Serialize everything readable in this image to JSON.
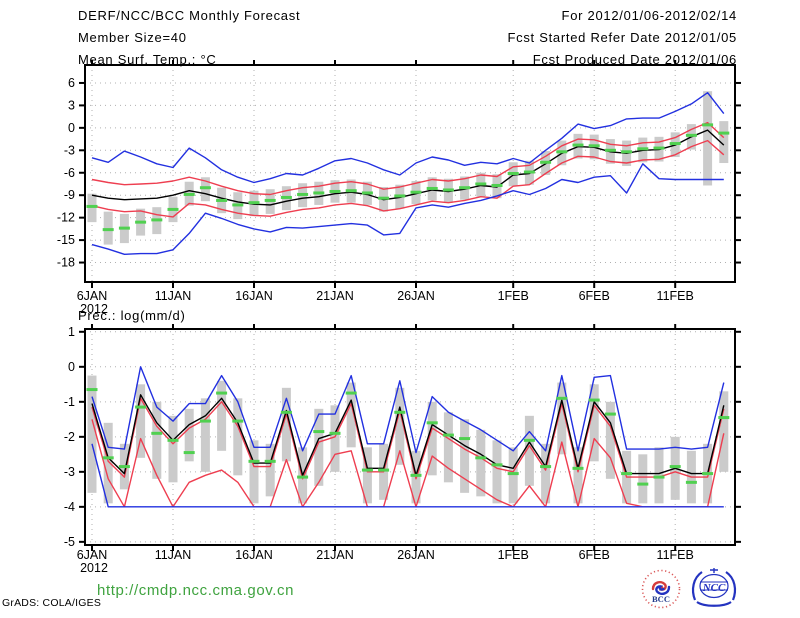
{
  "header": {
    "title": "DERF/NCC/BCC Monthly Forecast",
    "member_size": "Member Size=40",
    "temp_label": "Mean Surf. Temp.: °C",
    "for_range": "For 2012/01/06-2012/02/14",
    "fcst_started": "Fcst Started Refer Date 2012/01/05",
    "fcst_produced": "Fcst Produced Date 2012/01/06"
  },
  "prec_label": "Prec.: log(mm/d)",
  "footer": {
    "url": "http://cmdp.ncc.cma.gov.cn",
    "credit": "GrADS: COLA/IGES",
    "bcc_logo_text": "BCC",
    "ncc_logo_text": "NCC"
  },
  "colors": {
    "blue": "#2230e0",
    "red": "#ee3e50",
    "black": "#000000",
    "green": "#50d050",
    "bar": "#cbcbcb",
    "grid": "#b0b0b0",
    "url_green": "#3fa33f",
    "logo_red": "#d43c3c",
    "logo_blue": "#2433c0"
  },
  "chart_data": [
    {
      "type": "line",
      "title": "Mean Surf. Temp.: °C",
      "x_start": "6JAN2012",
      "n_points": 40,
      "x_ticks": [
        {
          "label": "6JAN",
          "sub": "2012",
          "day": 0
        },
        {
          "label": "11JAN",
          "day": 5
        },
        {
          "label": "16JAN",
          "day": 10
        },
        {
          "label": "21JAN",
          "day": 15
        },
        {
          "label": "26JAN",
          "day": 20
        },
        {
          "label": "1FEB",
          "day": 26
        },
        {
          "label": "6FEB",
          "day": 31
        },
        {
          "label": "11FEB",
          "day": 36
        }
      ],
      "yticks": [
        6,
        3,
        0,
        -3,
        -6,
        -9,
        -12,
        -15,
        -18
      ],
      "ylim": [
        -20.6,
        8.4
      ],
      "grid": "dotted",
      "series": [
        {
          "name": "ensemble-max-blue",
          "color": "blue",
          "values": [
            -4.0,
            -4.6,
            -3.1,
            -3.9,
            -4.8,
            -5.3,
            -2.7,
            -4.0,
            -5.6,
            -6.6,
            -7.3,
            -6.8,
            -6.1,
            -6.3,
            -5.4,
            -4.4,
            -4.1,
            -4.7,
            -5.6,
            -6.3,
            -4.7,
            -3.9,
            -4.3,
            -5.0,
            -4.6,
            -4.8,
            -4.1,
            -4.7,
            -3.0,
            -1.4,
            0.5,
            -0.1,
            0.3,
            1.2,
            1.3,
            1.3,
            2.2,
            3.2,
            4.7,
            1.9
          ]
        },
        {
          "name": "upper-quartile-red",
          "color": "red",
          "values": [
            -6.9,
            -7.3,
            -7.6,
            -7.5,
            -7.4,
            -7.1,
            -6.6,
            -7.1,
            -7.8,
            -8.4,
            -8.8,
            -8.9,
            -8.4,
            -8.0,
            -7.8,
            -7.4,
            -7.2,
            -7.5,
            -8.2,
            -7.9,
            -7.4,
            -6.9,
            -7.1,
            -6.8,
            -6.3,
            -6.5,
            -5.2,
            -5.0,
            -3.8,
            -2.4,
            -1.5,
            -1.6,
            -2.2,
            -2.4,
            -2.0,
            -1.9,
            -1.3,
            -0.2,
            0.7,
            -1.3
          ]
        },
        {
          "name": "lower-quartile-red",
          "color": "red",
          "values": [
            -10.4,
            -10.9,
            -11.2,
            -11.1,
            -11.6,
            -11.9,
            -10.1,
            -10.3,
            -10.9,
            -11.4,
            -11.7,
            -11.8,
            -11.3,
            -10.9,
            -10.7,
            -10.3,
            -10.1,
            -10.4,
            -11.1,
            -10.8,
            -10.3,
            -9.8,
            -10.0,
            -9.7,
            -9.2,
            -9.4,
            -7.8,
            -7.6,
            -6.1,
            -4.7,
            -3.8,
            -3.9,
            -4.5,
            -4.7,
            -4.3,
            -4.2,
            -3.6,
            -2.5,
            -1.7,
            -3.6
          ]
        },
        {
          "name": "ensemble-min-blue",
          "color": "blue",
          "values": [
            -15.6,
            -16.2,
            -16.9,
            -16.8,
            -16.8,
            -16.3,
            -14.1,
            -11.4,
            -12.1,
            -12.9,
            -13.5,
            -13.9,
            -13.3,
            -13.4,
            -13.2,
            -13.0,
            -12.8,
            -13.0,
            -14.3,
            -14.1,
            -10.7,
            -10.3,
            -10.6,
            -10.1,
            -9.7,
            -9.1,
            -8.4,
            -8.9,
            -8.1,
            -6.9,
            -7.3,
            -6.6,
            -6.4,
            -8.7,
            -4.8,
            -6.8,
            -6.9,
            -6.9,
            -6.9,
            -6.9
          ]
        },
        {
          "name": "ensemble-median-black",
          "color": "black",
          "values": [
            -9.0,
            -9.4,
            -9.6,
            -9.5,
            -9.4,
            -9.0,
            -8.4,
            -8.8,
            -9.4,
            -9.9,
            -10.2,
            -10.3,
            -9.8,
            -9.4,
            -9.2,
            -8.8,
            -8.6,
            -8.9,
            -9.6,
            -9.3,
            -8.8,
            -8.3,
            -8.5,
            -8.2,
            -7.7,
            -7.9,
            -6.3,
            -6.1,
            -4.8,
            -3.4,
            -2.5,
            -2.6,
            -3.2,
            -3.4,
            -3.0,
            -2.9,
            -2.3,
            -1.2,
            -0.3,
            -2.3
          ]
        }
      ],
      "bars": {
        "name": "member-spread-gray",
        "hi": [
          -8.8,
          -11.2,
          -11.5,
          -10.8,
          -10.6,
          -9.2,
          -7.2,
          -6.6,
          -8.0,
          -8.6,
          -8.4,
          -8.2,
          -7.8,
          -7.4,
          -7.2,
          -7.0,
          -6.9,
          -7.2,
          -7.9,
          -7.6,
          -7.1,
          -6.6,
          -6.8,
          -6.5,
          -6.0,
          -6.2,
          -4.6,
          -4.4,
          -3.1,
          -1.7,
          -0.8,
          -0.9,
          -1.5,
          -1.7,
          -1.3,
          -1.2,
          -0.6,
          0.5,
          4.9,
          0.9
        ],
        "lo": [
          -12.6,
          -15.6,
          -15.4,
          -14.4,
          -14.2,
          -12.6,
          -10.4,
          -9.8,
          -11.4,
          -12.2,
          -11.8,
          -11.5,
          -11.0,
          -10.6,
          -10.3,
          -10.0,
          -10.0,
          -10.3,
          -11.2,
          -10.8,
          -10.2,
          -9.7,
          -10.0,
          -9.6,
          -9.2,
          -9.4,
          -7.8,
          -7.6,
          -6.3,
          -5.0,
          -4.1,
          -4.2,
          -4.8,
          -5.1,
          -4.6,
          -4.5,
          -3.9,
          -2.9,
          -7.7,
          -4.7
        ]
      },
      "markers": {
        "name": "obs-green-dash",
        "values": [
          -10.5,
          -13.6,
          -13.4,
          -12.6,
          -12.3,
          -10.9,
          -8.9,
          -8.0,
          -9.7,
          -10.3,
          -10.0,
          -9.7,
          -9.3,
          -8.9,
          -8.7,
          -8.5,
          -8.4,
          -8.7,
          -9.4,
          -9.1,
          -8.6,
          -8.1,
          -8.3,
          -8.0,
          -7.5,
          -7.7,
          -6.1,
          -5.9,
          -4.6,
          -3.2,
          -2.3,
          -2.4,
          -3.0,
          -3.2,
          -2.8,
          -2.7,
          -2.1,
          -1.0,
          0.4,
          -0.7
        ]
      }
    },
    {
      "type": "line",
      "title": "Prec.: log(mm/d)",
      "x_start": "6JAN2012",
      "n_points": 40,
      "x_ticks": [
        {
          "label": "6JAN",
          "sub": "2012",
          "day": 0
        },
        {
          "label": "11JAN",
          "day": 5
        },
        {
          "label": "16JAN",
          "day": 10
        },
        {
          "label": "21JAN",
          "day": 15
        },
        {
          "label": "26JAN",
          "day": 20
        },
        {
          "label": "1FEB",
          "day": 26
        },
        {
          "label": "6FEB",
          "day": 31
        },
        {
          "label": "11FEB",
          "day": 36
        }
      ],
      "yticks": [
        1,
        0,
        -1,
        -2,
        -3,
        -4,
        -5
      ],
      "ylim": [
        -5.09,
        1.08
      ],
      "grid": "dotted",
      "series": [
        {
          "name": "ensemble-max-blue",
          "color": "blue",
          "values": [
            -0.85,
            -2.3,
            -2.35,
            0.0,
            -1.15,
            -1.55,
            -1.05,
            -1.05,
            -0.25,
            -1.0,
            -2.3,
            -2.3,
            -0.9,
            -2.4,
            -1.35,
            -1.35,
            -0.25,
            -2.2,
            -2.2,
            -0.4,
            -2.45,
            -0.85,
            -1.3,
            -1.55,
            -1.8,
            -2.1,
            -2.4,
            -1.85,
            -2.4,
            -0.25,
            -2.4,
            -0.3,
            -0.25,
            -2.35,
            -2.35,
            -2.35,
            -2.3,
            -2.35,
            -2.3,
            -0.45
          ]
        },
        {
          "name": "upper-quartile-red",
          "color": "red",
          "values": [
            -1.15,
            -2.7,
            -3.15,
            -0.9,
            -1.7,
            -2.2,
            -1.75,
            -1.5,
            -1.0,
            -1.7,
            -2.85,
            -2.85,
            -1.35,
            -3.2,
            -2.15,
            -2.0,
            -1.05,
            -3.0,
            -3.0,
            -1.25,
            -3.2,
            -1.75,
            -2.05,
            -2.35,
            -2.6,
            -2.9,
            -3.0,
            -2.25,
            -2.95,
            -1.05,
            -3.0,
            -1.1,
            -1.7,
            -3.15,
            -3.15,
            -3.15,
            -3.0,
            -3.15,
            -3.15,
            -1.2
          ]
        },
        {
          "name": "lower-quartile-red",
          "color": "red",
          "values": [
            -1.5,
            -3.2,
            -4.0,
            -2.05,
            -3.1,
            -4.0,
            -3.3,
            -3.1,
            -2.95,
            -3.3,
            -4.0,
            -4.0,
            -2.65,
            -4.0,
            -3.3,
            -2.5,
            -2.4,
            -4.0,
            -4.0,
            -2.4,
            -4.0,
            -2.55,
            -2.9,
            -3.2,
            -3.5,
            -3.8,
            -4.0,
            -3.4,
            -4.0,
            -2.15,
            -4.0,
            -2.05,
            -2.6,
            -3.9,
            -4.0,
            -4.0,
            -4.0,
            -4.0,
            -4.0,
            -1.9
          ]
        },
        {
          "name": "ensemble-min-blue",
          "color": "blue",
          "values": [
            -2.2,
            -4.0,
            -4.0,
            -4.0,
            -4.0,
            -4.0,
            -4.0,
            -4.0,
            -4.0,
            -4.0,
            -4.0,
            -4.0,
            -4.0,
            -4.0,
            -4.0,
            -4.0,
            -4.0,
            -4.0,
            -4.0,
            -4.0,
            -4.0,
            -4.0,
            -4.0,
            -4.0,
            -4.0,
            -4.0,
            -4.0,
            -4.0,
            -4.0,
            -4.0,
            -4.0,
            -4.0,
            -4.0,
            -4.0,
            -4.0,
            -4.0,
            -4.0,
            -4.0,
            -4.0,
            -4.0
          ]
        },
        {
          "name": "ensemble-median-black",
          "color": "black",
          "values": [
            -1.05,
            -2.6,
            -3.05,
            -0.8,
            -1.6,
            -2.1,
            -1.65,
            -1.4,
            -0.9,
            -1.6,
            -2.75,
            -2.75,
            -1.25,
            -3.1,
            -2.05,
            -1.9,
            -0.95,
            -2.9,
            -2.9,
            -1.15,
            -3.1,
            -1.65,
            -1.95,
            -2.25,
            -2.5,
            -2.8,
            -2.9,
            -2.15,
            -2.85,
            -0.95,
            -2.9,
            -1.0,
            -1.6,
            -3.05,
            -3.05,
            -3.05,
            -2.9,
            -3.05,
            -3.05,
            -1.1
          ]
        }
      ],
      "bars": {
        "name": "member-spread-gray",
        "hi": [
          -0.25,
          -1.6,
          -2.2,
          -0.5,
          -1.0,
          -1.4,
          -1.2,
          -0.9,
          -0.4,
          -0.9,
          -2.1,
          -2.2,
          -0.6,
          -2.3,
          -1.2,
          -1.1,
          -0.45,
          -2.3,
          -2.2,
          -0.6,
          -2.4,
          -1.0,
          -1.3,
          -1.5,
          -1.8,
          -2.1,
          -2.3,
          -1.4,
          -2.2,
          -0.45,
          -2.3,
          -0.5,
          -1.0,
          -2.4,
          -2.5,
          -2.3,
          -2.0,
          -2.4,
          -2.2,
          -0.7
        ],
        "lo": [
          -3.6,
          -3.9,
          -3.5,
          -2.6,
          -3.2,
          -3.3,
          -2.7,
          -3.0,
          -2.4,
          -3.1,
          -3.9,
          -3.7,
          -2.7,
          -3.9,
          -3.4,
          -3.0,
          -2.3,
          -3.9,
          -3.8,
          -2.8,
          -3.9,
          -3.1,
          -3.3,
          -3.6,
          -3.7,
          -3.9,
          -3.9,
          -3.4,
          -3.9,
          -2.5,
          -3.9,
          -2.7,
          -3.2,
          -3.9,
          -3.9,
          -3.9,
          -3.8,
          -3.9,
          -3.9,
          -3.0
        ]
      },
      "markers": {
        "name": "obs-green-dash",
        "values": [
          -0.65,
          -2.6,
          -2.85,
          -1.15,
          -1.9,
          -2.1,
          -2.45,
          -1.55,
          -0.75,
          -1.55,
          -2.7,
          -2.7,
          -1.3,
          -3.15,
          -1.85,
          -1.9,
          -0.75,
          -2.95,
          -2.95,
          -1.3,
          -3.1,
          -1.6,
          -1.95,
          -2.05,
          -2.6,
          -2.8,
          -3.05,
          -2.1,
          -2.85,
          -0.9,
          -2.9,
          -0.95,
          -1.35,
          -3.05,
          -3.35,
          -3.15,
          -2.85,
          -3.3,
          -3.05,
          -1.45
        ]
      }
    }
  ]
}
